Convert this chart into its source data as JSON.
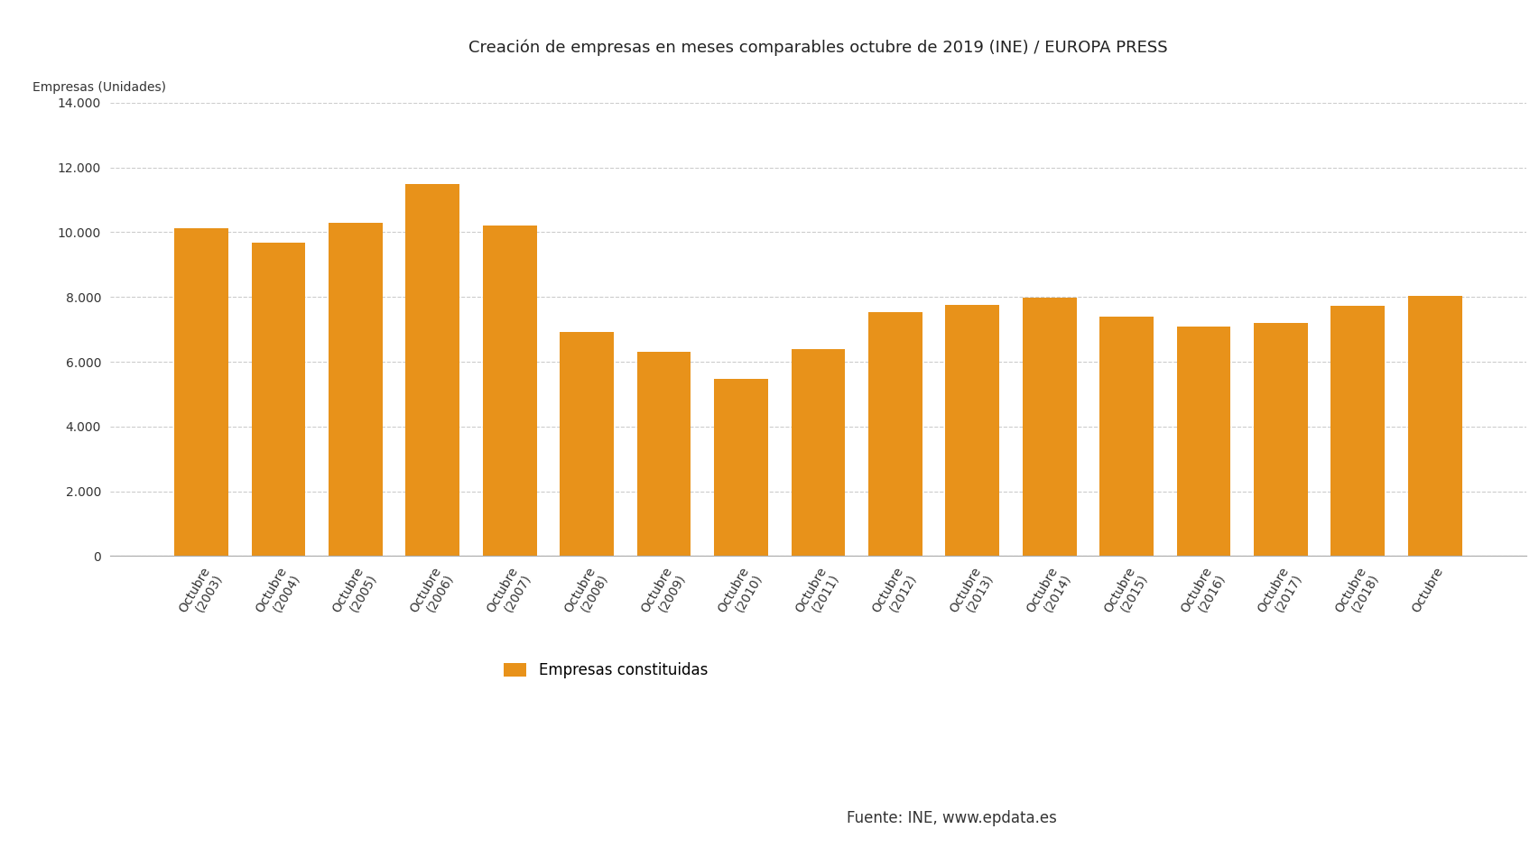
{
  "title": "Creación de empresas en meses comparables octubre de 2019 (INE) / EUROPA PRESS",
  "ylabel": "Empresas (Unidades)",
  "bar_color": "#E8921A",
  "background_color": "#ffffff",
  "categories": [
    "Octubre\n(2003)",
    "Octubre\n(2004)",
    "Octubre\n(2005)",
    "Octubre\n(2006)",
    "Octubre\n(2007)",
    "Octubre\n(2008)",
    "Octubre\n(2009)",
    "Octubre\n(2010)",
    "Octubre\n(2011)",
    "Octubre\n(2012)",
    "Octubre\n(2013)",
    "Octubre\n(2014)",
    "Octubre\n(2015)",
    "Octubre\n(2016)",
    "Octubre\n(2017)",
    "Octubre\n(2018)",
    "Octubre"
  ],
  "values": [
    10130,
    9680,
    10280,
    11480,
    10210,
    6920,
    6310,
    5470,
    6390,
    7540,
    7760,
    7990,
    7400,
    7100,
    7210,
    7730,
    8040
  ],
  "ylim": [
    0,
    14000
  ],
  "yticks": [
    0,
    2000,
    4000,
    6000,
    8000,
    10000,
    12000,
    14000
  ],
  "ytick_labels": [
    "0",
    "2.000",
    "4.000",
    "6.000",
    "8.000",
    "10.000",
    "12.000",
    "14.000"
  ],
  "legend_label": "Empresas constituidas",
  "source_label": "Fuente: INE, www.epdata.es",
  "title_fontsize": 13,
  "label_fontsize": 10,
  "tick_fontsize": 10,
  "legend_fontsize": 12,
  "bar_width": 0.7,
  "grid_color": "#cccccc",
  "spine_color": "#aaaaaa",
  "text_color": "#333333"
}
